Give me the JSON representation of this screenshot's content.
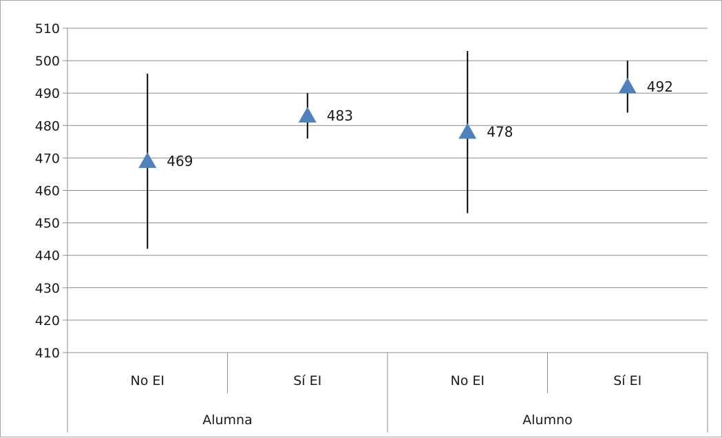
{
  "chart_data": {
    "type": "scatter",
    "title": "",
    "xlabel": "",
    "ylabel": "",
    "ylim": [
      410,
      510
    ],
    "yticks": [
      410,
      420,
      430,
      440,
      450,
      460,
      470,
      480,
      490,
      500,
      510
    ],
    "grid": true,
    "legend": "none",
    "marker": "triangle",
    "marker_color": "#4f81bd",
    "groups": [
      {
        "label": "Alumna",
        "categories": [
          "No EI",
          "Sí EI"
        ]
      },
      {
        "label": "Alumno",
        "categories": [
          "No EI",
          "Sí EI"
        ]
      }
    ],
    "points": [
      {
        "group": "Alumna",
        "category": "No EI",
        "value": 469,
        "low": 442,
        "high": 496,
        "label": "469"
      },
      {
        "group": "Alumna",
        "category": "Sí EI",
        "value": 483,
        "low": 476,
        "high": 490,
        "label": "483"
      },
      {
        "group": "Alumno",
        "category": "No EI",
        "value": 478,
        "low": 453,
        "high": 503,
        "label": "478"
      },
      {
        "group": "Alumno",
        "category": "Sí EI",
        "value": 492,
        "low": 484,
        "high": 500,
        "label": "492"
      }
    ]
  }
}
